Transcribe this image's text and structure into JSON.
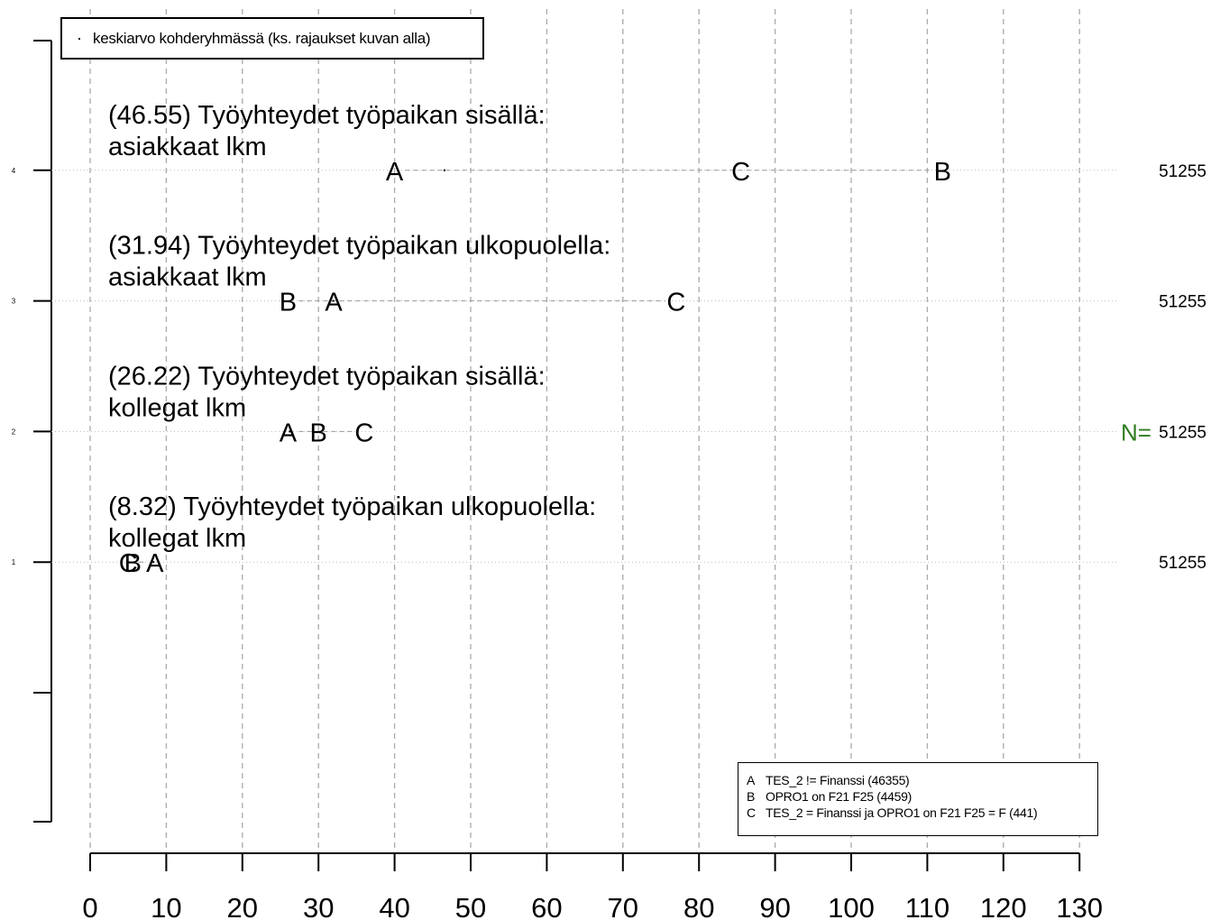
{
  "chart_data": {
    "type": "scatter",
    "title": "",
    "xlabel": "",
    "ylabel": "",
    "xlim": [
      0,
      130
    ],
    "x_ticks": [
      "0",
      "10",
      "20",
      "30",
      "40",
      "50",
      "60",
      "70",
      "80",
      "90",
      "100",
      "110",
      "120",
      "130"
    ],
    "y_tick_labels": [
      "1",
      "2",
      "3",
      "4"
    ],
    "grid": true,
    "mean_legend": "keskiarvo kohderyhmässä (ks. rajaukset kuvan alla)",
    "n_label": "N=",
    "rows": [
      {
        "y": 4,
        "label_line1": "(46.55) Työyhteydet työpaikan sisällä:",
        "label_line2": "asiakkaat lkm",
        "n": "51255",
        "mean": 46.55,
        "points": [
          {
            "group": "A",
            "x": 40
          },
          {
            "group": "C",
            "x": 85.5
          },
          {
            "group": "B",
            "x": 112
          }
        ]
      },
      {
        "y": 3,
        "label_line1": "(31.94) Työyhteydet työpaikan ulkopuolella:",
        "label_line2": "asiakkaat lkm",
        "n": "51255",
        "mean": 31.94,
        "points": [
          {
            "group": "B",
            "x": 26
          },
          {
            "group": "A",
            "x": 32
          },
          {
            "group": "C",
            "x": 77
          }
        ]
      },
      {
        "y": 2,
        "label_line1": "(26.22) Työyhteydet työpaikan sisällä:",
        "label_line2": "kollegat lkm",
        "n": "51255",
        "mean": 26.22,
        "points": [
          {
            "group": "A",
            "x": 26
          },
          {
            "group": "B",
            "x": 30
          },
          {
            "group": "C",
            "x": 36
          }
        ]
      },
      {
        "y": 1,
        "label_line1": "(8.32) Työyhteydet työpaikan ulkopuolella:",
        "label_line2": "kollegat lkm",
        "n": "51255",
        "mean": 8.32,
        "points": [
          {
            "group": "C",
            "x": 5
          },
          {
            "group": "B",
            "x": 5.6
          },
          {
            "group": "A",
            "x": 8.5
          }
        ]
      }
    ],
    "legend": [
      {
        "code": "A",
        "text": "TES_2 != Finanssi (46355)"
      },
      {
        "code": "B",
        "text": "OPRO1 on F21 F25 (4459)"
      },
      {
        "code": "C",
        "text": "TES_2 = Finanssi ja OPRO1 on F21 F25 = F (441)"
      }
    ],
    "colors": {
      "n_label": "#2e7d1e",
      "grid": "#aaaaaa",
      "text": "#000000"
    }
  }
}
